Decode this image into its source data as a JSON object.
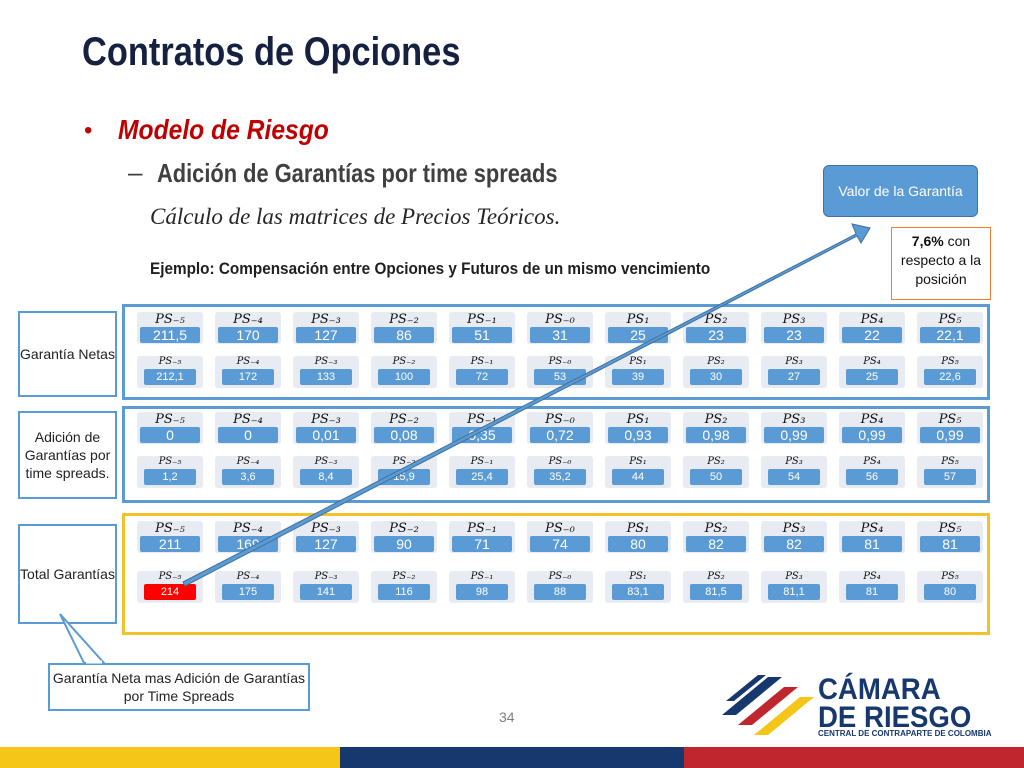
{
  "slide": {
    "title": "Contratos de Opciones",
    "bullet_1": "Modelo de Riesgo",
    "bullet_2": "Adición de Garantías por time spreads",
    "subtitle": "Cálculo de las matrices de Precios Teóricos.",
    "example": "Ejemplo: Compensación entre Opciones y Futuros de un mismo vencimiento",
    "page_number": "34"
  },
  "callouts": {
    "valor_garantia": "Valor de la Garantía",
    "percentage_bold": "7,6%",
    "percentage_rest": " con respecto a la posición",
    "bottom": "Garantía Neta mas Adición de Garantías por Time Spreads"
  },
  "side_labels": {
    "garantia_netas": "Garantía Netas",
    "adicion": "Adición de Garantías por time spreads.",
    "total": "Total Garantías"
  },
  "matrix": {
    "scenarios": [
      "PS₋₅",
      "PS₋₄",
      "PS₋₃",
      "PS₋₂",
      "PS₋₁",
      "PS₋₀",
      "PS₁",
      "PS₂",
      "PS₃",
      "PS₄",
      "PS₅"
    ],
    "garantia_netas": {
      "row_1": [
        "211,5",
        "170",
        "127",
        "86",
        "51",
        "31",
        "25",
        "23",
        "23",
        "22",
        "22,1"
      ],
      "row_2": [
        "212,1",
        "172",
        "133",
        "100",
        "72",
        "53",
        "39",
        "30",
        "27",
        "25",
        "22,6"
      ]
    },
    "adicion": {
      "row_1": [
        "0",
        "0",
        "0,01",
        "0,08",
        "0,35",
        "0,72",
        "0,93",
        "0,98",
        "0,99",
        "0,99",
        "0,99"
      ],
      "row_2": [
        "1,2",
        "3,6",
        "8,4",
        "15,9",
        "25,4",
        "35,2",
        "44",
        "50",
        "54",
        "56",
        "57"
      ]
    },
    "total": {
      "row_1": [
        "211",
        "169",
        "127",
        "90",
        "71",
        "74",
        "80",
        "82",
        "82",
        "81",
        "81"
      ],
      "row_2": [
        "214",
        "175",
        "141",
        "116",
        "98",
        "88",
        "83,1",
        "81,5",
        "81,1",
        "81",
        "80"
      ]
    }
  },
  "logo": {
    "line_1": "CÁMARA",
    "line_2": "DE RIESGO",
    "line_3": "CENTRAL DE CONTRAPARTE DE COLOMBIA"
  },
  "colors": {
    "accent_blue": "#5b9bd5",
    "gold": "#f2c12e",
    "highlight_red": "#ff0000",
    "title_navy": "#16213f",
    "bar_yellow": "#f5c518",
    "bar_red": "#c0262d"
  }
}
